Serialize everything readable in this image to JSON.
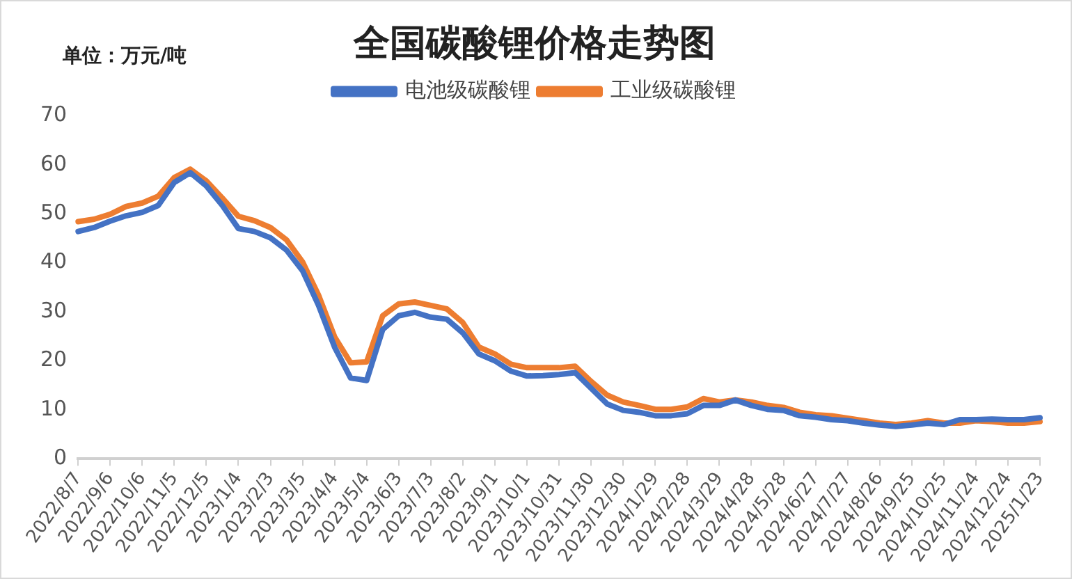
{
  "chart_data": {
    "type": "line",
    "title": "全国碳酸锂价格走势图",
    "annotations": [
      "单位：万元/吨"
    ],
    "categories": [
      "2022/8/7",
      null,
      "2022/9/6",
      null,
      "2022/10/6",
      null,
      "2022/11/5",
      null,
      "2022/12/5",
      null,
      "2023/1/4",
      null,
      "2023/2/3",
      null,
      "2023/3/5",
      null,
      "2023/4/4",
      null,
      "2023/5/4",
      null,
      "2023/6/3",
      null,
      "2023/7/3",
      null,
      "2023/8/2",
      null,
      "2023/9/1",
      null,
      "2023/10/1",
      null,
      "2023/10/31",
      null,
      "2023/11/30",
      null,
      "2023/12/30",
      null,
      "2024/1/29",
      null,
      "2024/2/28",
      null,
      "2024/3/29",
      null,
      "2024/4/28",
      null,
      "2024/5/28",
      null,
      "2024/6/27",
      null,
      "2024/7/27",
      null,
      "2024/8/26",
      null,
      "2024/9/25",
      null,
      "2024/10/25",
      null,
      "2024/11/24",
      null,
      "2024/12/24",
      null,
      "2025/1/23"
    ],
    "series": [
      {
        "name": "电池级碳酸锂",
        "color": "#4472c4",
        "values": [
          46.4,
          47.2,
          48.5,
          49.6,
          50.3,
          51.7,
          56.4,
          58.4,
          55.7,
          51.7,
          47.0,
          46.4,
          45.1,
          42.6,
          38.4,
          31.3,
          22.8,
          16.5,
          16.0,
          26.4,
          29.2,
          29.9,
          28.9,
          28.5,
          25.7,
          21.4,
          20.0,
          17.9,
          16.9,
          17.0,
          17.2,
          17.6,
          14.4,
          11.2,
          9.9,
          9.5,
          8.8,
          8.8,
          9.2,
          10.9,
          10.9,
          12.0,
          10.9,
          10.1,
          9.9,
          8.8,
          8.5,
          8.0,
          7.8,
          7.3,
          6.9,
          6.6,
          6.9,
          7.3,
          7.0,
          8.0,
          8.0,
          8.1,
          8.0,
          8.0,
          8.4
        ]
      },
      {
        "name": "工业级碳酸锂",
        "color": "#ed7d31",
        "values": [
          48.4,
          48.9,
          49.9,
          51.5,
          52.2,
          53.6,
          57.4,
          59.1,
          56.7,
          53.2,
          49.5,
          48.6,
          47.2,
          44.7,
          40.2,
          33.4,
          24.9,
          19.6,
          19.8,
          29.2,
          31.6,
          32.0,
          31.3,
          30.6,
          27.8,
          22.8,
          21.4,
          19.3,
          18.6,
          18.6,
          18.6,
          18.9,
          15.8,
          13.0,
          11.6,
          10.9,
          10.1,
          10.1,
          10.6,
          12.3,
          11.6,
          12.0,
          11.6,
          10.9,
          10.5,
          9.5,
          9.0,
          8.8,
          8.3,
          7.8,
          7.3,
          7.0,
          7.3,
          7.8,
          7.3,
          7.3,
          7.8,
          7.6,
          7.3,
          7.3,
          7.6
        ]
      }
    ],
    "ylim": [
      0,
      70
    ],
    "yticks": [
      0,
      10,
      20,
      30,
      40,
      50,
      60,
      70
    ],
    "grid": false,
    "legend": "top",
    "marker": "none",
    "line_style": "solid"
  }
}
